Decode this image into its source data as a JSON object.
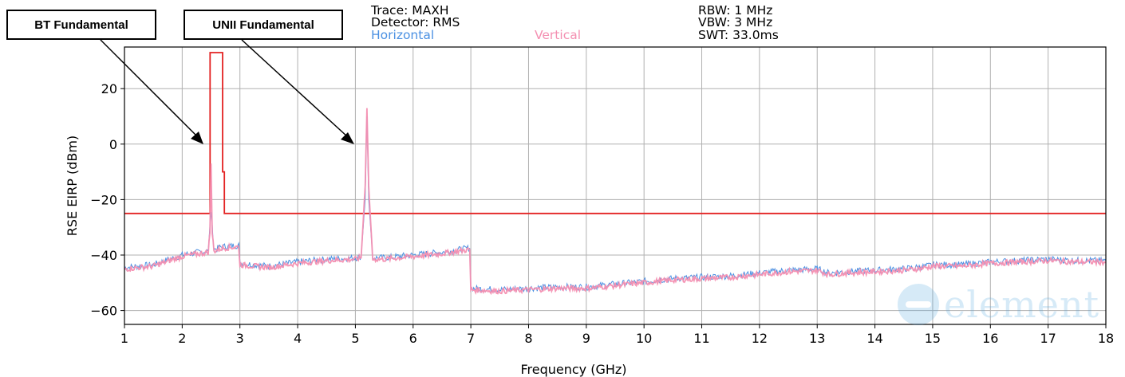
{
  "header": {
    "trace": "Trace: MAXH",
    "detector": "Detector: RMS",
    "rbw": "RBW: 1 MHz",
    "vbw": "VBW: 3 MHz",
    "swt": "SWT: 33.0ms"
  },
  "callouts": {
    "bt": "BT Fundamental",
    "unii": "UNII Fundamental"
  },
  "watermark": {
    "text": "element"
  },
  "colors": {
    "horizontal": "#4a90e2",
    "vertical": "#f48fb1",
    "limit": "#e32222"
  },
  "chart_data": {
    "type": "line",
    "title": "",
    "xlabel": "Frequency (GHz)",
    "ylabel": "RSE EIRP (dBm)",
    "xlim": [
      1,
      18
    ],
    "ylim": [
      -65,
      35
    ],
    "grid": true,
    "legend_placement": "top",
    "xticks": [
      "1",
      "2",
      "3",
      "4",
      "5",
      "6",
      "7",
      "8",
      "9",
      "10",
      "11",
      "12",
      "13",
      "14",
      "15",
      "16",
      "17",
      "18"
    ],
    "yticks": [
      "20",
      "0",
      "−20",
      "−40",
      "−60"
    ],
    "ytick_values": [
      20,
      0,
      -20,
      -40,
      -60
    ],
    "series": [
      {
        "name": "Horizontal",
        "x": [
          1.0,
          1.5,
          2.0,
          2.45,
          2.48,
          2.5,
          2.52,
          2.55,
          2.7,
          2.98,
          3.0,
          3.5,
          4.0,
          4.5,
          5.0,
          5.1,
          5.17,
          5.2,
          5.23,
          5.3,
          5.5,
          6.0,
          6.5,
          6.98,
          7.0,
          7.5,
          8.0,
          8.5,
          9.0,
          9.5,
          10.0,
          10.5,
          11.0,
          11.5,
          12.0,
          12.5,
          13.0,
          13.2,
          13.5,
          14.0,
          14.5,
          14.9,
          15.0,
          15.5,
          16.0,
          16.5,
          17.0,
          17.5,
          18.0
        ],
        "y": [
          -44.5,
          -43.5,
          -40.0,
          -38.5,
          -30.0,
          -24.0,
          -30.0,
          -38.0,
          -37.0,
          -36.5,
          -43.0,
          -44.0,
          -42.5,
          -41.5,
          -41.0,
          -40.5,
          -20.0,
          10.0,
          -20.0,
          -41.0,
          -41.0,
          -40.0,
          -39.0,
          -37.5,
          -52.0,
          -52.5,
          -52.0,
          -51.5,
          -51.5,
          -50.5,
          -49.5,
          -48.5,
          -48.0,
          -47.5,
          -46.5,
          -45.5,
          -45.0,
          -46.5,
          -46.0,
          -45.5,
          -45.0,
          -44.0,
          -43.5,
          -43.5,
          -42.5,
          -42.0,
          -41.5,
          -42.0,
          -42.0
        ]
      },
      {
        "name": "Vertical",
        "x": [
          1.0,
          1.5,
          2.0,
          2.45,
          2.48,
          2.5,
          2.52,
          2.55,
          2.7,
          2.98,
          3.0,
          3.5,
          4.0,
          4.5,
          5.0,
          5.1,
          5.17,
          5.2,
          5.23,
          5.3,
          5.5,
          6.0,
          6.5,
          6.98,
          7.0,
          7.5,
          8.0,
          8.5,
          9.0,
          9.5,
          10.0,
          10.5,
          11.0,
          11.5,
          12.0,
          12.5,
          13.0,
          13.2,
          13.5,
          14.0,
          14.5,
          14.9,
          15.0,
          15.5,
          16.0,
          16.5,
          17.0,
          17.5,
          18.0
        ],
        "y": [
          -45.0,
          -44.0,
          -40.5,
          -39.0,
          -32.0,
          -7.0,
          -32.0,
          -38.5,
          -37.5,
          -37.0,
          -43.5,
          -44.5,
          -43.0,
          -42.0,
          -41.5,
          -41.0,
          -15.0,
          13.0,
          -15.0,
          -41.5,
          -41.5,
          -40.5,
          -39.5,
          -38.0,
          -52.5,
          -53.0,
          -52.5,
          -52.0,
          -52.0,
          -51.0,
          -50.0,
          -49.0,
          -48.5,
          -48.0,
          -47.0,
          -46.0,
          -45.5,
          -47.0,
          -46.5,
          -46.0,
          -45.5,
          -44.5,
          -44.0,
          -44.0,
          -43.0,
          -42.5,
          -42.0,
          -42.5,
          -42.5
        ]
      },
      {
        "name": "",
        "x": [
          1.0,
          2.483,
          2.483,
          2.7,
          2.7,
          2.73,
          2.73,
          18.0
        ],
        "y": [
          -25.0,
          -25.0,
          33.0,
          33.0,
          -10.0,
          -10.0,
          -25.0,
          -25.0
        ]
      }
    ]
  }
}
